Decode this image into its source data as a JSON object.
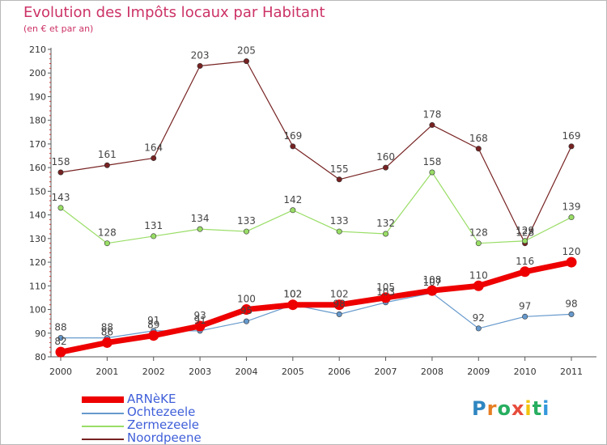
{
  "header": {
    "title": "Evolution des Impôts locaux par Habitant",
    "subtitle": "(en € et par an)"
  },
  "logo": {
    "letters": [
      "P",
      "r",
      "o",
      "x",
      "i",
      "t",
      "i"
    ],
    "colors": [
      "#2e86c1",
      "#e67e22",
      "#27ae60",
      "#e74c3c",
      "#f1c40f",
      "#27ae60",
      "#3498db"
    ]
  },
  "chart_data": {
    "type": "line",
    "title": "Evolution des Impôts locaux par Habitant",
    "subtitle": "(en € et par an)",
    "xlabel": "",
    "ylabel": "",
    "ylim": [
      80,
      210
    ],
    "yticks": [
      80,
      90,
      100,
      110,
      120,
      130,
      140,
      150,
      160,
      170,
      180,
      190,
      200,
      210
    ],
    "x": [
      "2000",
      "2001",
      "2002",
      "2003",
      "2004",
      "2005",
      "2006",
      "2007",
      "2008",
      "2009",
      "2010",
      "2011"
    ],
    "grid": false,
    "legend_position": "bottom-left",
    "series": [
      {
        "name": "ARNèKE",
        "color": "#ee0000",
        "values": [
          82,
          86,
          89,
          93,
          100,
          102,
          102,
          105,
          108,
          110,
          116,
          120
        ],
        "labels": [
          "82",
          "86",
          "89",
          "93",
          "100",
          "102",
          "102",
          "105",
          "108",
          "110",
          "116",
          "120"
        ]
      },
      {
        "name": "Ochtezeele",
        "color": "#6699cc",
        "values": [
          88,
          88,
          91,
          91,
          95,
          102,
          98,
          103,
          107,
          92,
          97,
          98
        ],
        "labels": [
          "88",
          "88",
          "91",
          "91",
          "95",
          "102",
          "98",
          "103",
          "107",
          "92",
          "97",
          "98"
        ]
      },
      {
        "name": "Zermezeele",
        "color": "#99dd66",
        "values": [
          143,
          128,
          131,
          134,
          133,
          142,
          133,
          132,
          158,
          128,
          129,
          139
        ],
        "labels": [
          "143",
          "128",
          "131",
          "134",
          "133",
          "142",
          "133",
          "132",
          "158",
          "128",
          "129",
          "139"
        ]
      },
      {
        "name": "Noordpeene",
        "color": "#772222",
        "values": [
          158,
          161,
          164,
          203,
          205,
          169,
          155,
          160,
          178,
          168,
          128,
          169
        ],
        "labels": [
          "158",
          "161",
          "164",
          "203",
          "205",
          "169",
          "155",
          "160",
          "178",
          "168",
          "128",
          "169"
        ]
      }
    ]
  }
}
